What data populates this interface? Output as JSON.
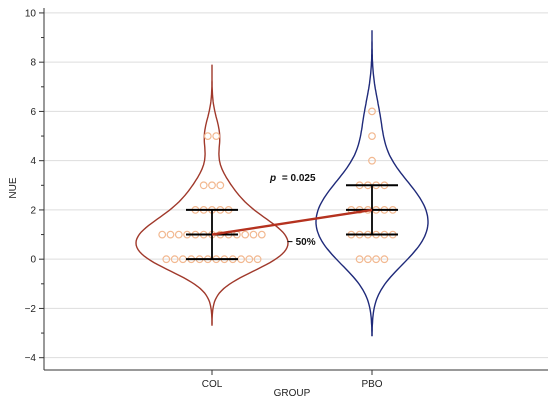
{
  "chart_data": {
    "type": "violin",
    "xlabel": "GROUP",
    "ylabel": "NUE",
    "ylim": [
      -4.5,
      10.2
    ],
    "yticks": [
      -4,
      -2,
      0,
      2,
      4,
      6,
      8,
      10
    ],
    "grid": "horizontal",
    "categories": [
      "COL",
      "PBO"
    ],
    "groups": [
      {
        "name": "COL",
        "color": "#a0392b",
        "points": [
          0,
          0,
          0,
          0,
          0,
          0,
          0,
          0,
          0,
          0,
          0,
          0,
          1,
          1,
          1,
          1,
          1,
          1,
          1,
          1,
          1,
          1,
          1,
          1,
          1,
          2,
          2,
          2,
          2,
          2,
          3,
          3,
          3,
          5,
          5
        ],
        "median": 1,
        "q1": 0,
        "q3": 2,
        "violin_range": [
          -2.7,
          7.9
        ]
      },
      {
        "name": "PBO",
        "color": "#1f2a7a",
        "points": [
          0,
          0,
          0,
          0,
          1,
          1,
          1,
          1,
          1,
          1,
          2,
          2,
          2,
          2,
          2,
          2,
          3,
          3,
          3,
          3,
          4,
          5,
          6
        ],
        "median": 2,
        "q1": 1,
        "q3": 3,
        "violin_range": [
          -3.1,
          9.3
        ]
      }
    ],
    "annotations": {
      "p_label": "p",
      "p_value": "= 0.025",
      "change": "− 50%"
    },
    "colors": {
      "point": "#f2b890",
      "connector": "#b5321f",
      "whisker": "#000000",
      "grid": "#dddddd"
    }
  }
}
